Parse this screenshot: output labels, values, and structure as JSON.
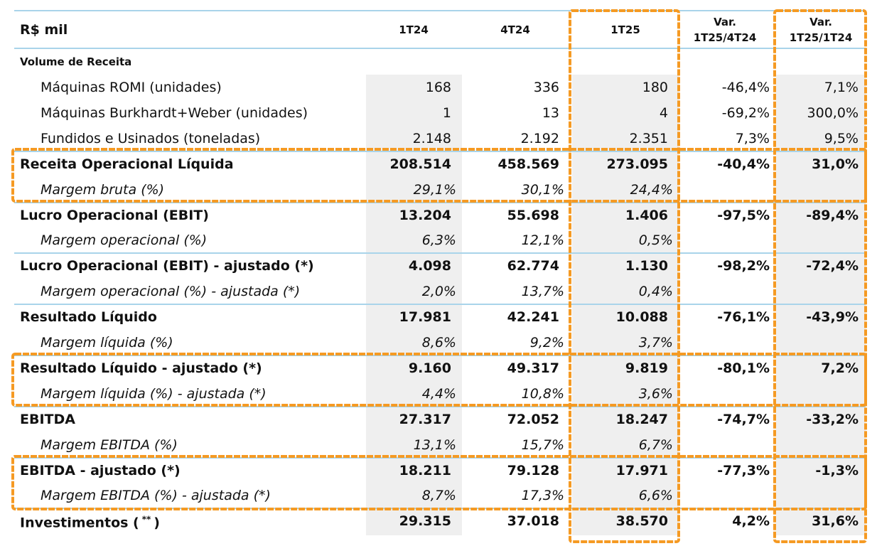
{
  "table": {
    "header": [
      "R$ mil",
      "1T24",
      "4T24",
      "1T25",
      [
        "Var.",
        "1T25/4T24"
      ],
      [
        "Var.",
        "1T25/1T24"
      ]
    ],
    "section": "Volume de Receita",
    "rows": [
      {
        "label": "Máquinas ROMI (unidades)",
        "values": [
          "168",
          "336",
          "180",
          "-46,4%",
          "7,1%"
        ]
      },
      {
        "label": "Máquinas Burkhardt+Weber (unidades)",
        "values": [
          "1",
          "13",
          "4",
          "-69,2%",
          "300,0%"
        ]
      },
      {
        "label": "Fundidos e Usinados (toneladas)",
        "values": [
          "2.148",
          "2.192",
          "2.351",
          "7,3%",
          "9,5%"
        ]
      },
      {
        "label": "Receita Operacional Líquida",
        "values": [
          "208.514",
          "458.569",
          "273.095",
          "-40,4%",
          "31,0%"
        ]
      },
      {
        "label": "Margem bruta (%)",
        "values": [
          "29,1%",
          "30,1%",
          "24,4%"
        ]
      },
      {
        "label": "Lucro Operacional (EBIT)",
        "values": [
          "13.204",
          "55.698",
          "1.406",
          "-97,5%",
          "-89,4%"
        ]
      },
      {
        "label": "Margem operacional  (%)",
        "values": [
          "6,3%",
          "12,1%",
          "0,5%"
        ]
      },
      {
        "label": "Lucro Operacional (EBIT) - ajustado (*)",
        "values": [
          "4.098",
          "62.774",
          "1.130",
          "-98,2%",
          "-72,4%"
        ]
      },
      {
        "label": "Margem operacional  (%) - ajustada (*)",
        "values": [
          "2,0%",
          "13,7%",
          "0,4%"
        ]
      },
      {
        "label": "Resultado Líquido",
        "values": [
          "17.981",
          "42.241",
          "10.088",
          "-76,1%",
          "-43,9%"
        ]
      },
      {
        "label": "Margem líquida (%)",
        "values": [
          "8,6%",
          "9,2%",
          "3,7%"
        ]
      },
      {
        "label": "Resultado Líquido - ajustado (*)",
        "values": [
          "9.160",
          "49.317",
          "9.819",
          "-80,1%",
          "7,2%"
        ]
      },
      {
        "label": "Margem líquida (%) - ajustada (*)",
        "values": [
          "4,4%",
          "10,8%",
          "3,6%"
        ]
      },
      {
        "label": "EBITDA",
        "values": [
          "27.317",
          "72.052",
          "18.247",
          "-74,7%",
          "-33,2%"
        ]
      },
      {
        "label": "Margem EBITDA (%)",
        "values": [
          "13,1%",
          "15,7%",
          "6,7%"
        ]
      },
      {
        "label": "EBITDA - ajustado (*)",
        "values": [
          "18.211",
          "79.128",
          "17.971",
          "-77,3%",
          "-1,3%"
        ]
      },
      {
        "label": "Margem EBITDA (%) - ajustada (*)",
        "values": [
          "8,7%",
          "17,3%",
          "6,6%"
        ]
      },
      {
        "label": [
          "Investimentos (",
          "**",
          ")"
        ],
        "values": [
          "29.315",
          "37.018",
          "38.570",
          "4,2%",
          "31,6%"
        ]
      }
    ]
  }
}
